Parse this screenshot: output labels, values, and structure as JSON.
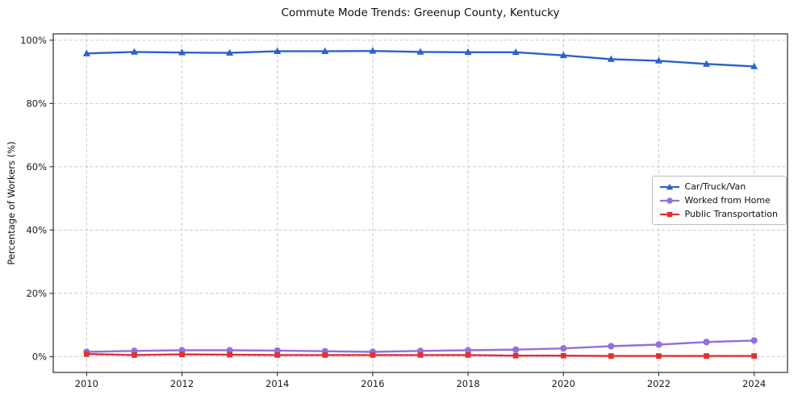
{
  "chart_data": {
    "type": "line",
    "title": "Commute Mode Trends: Greenup County, Kentucky",
    "xlabel": "",
    "ylabel": "Percentage of Workers (%)",
    "x": [
      2010,
      2011,
      2012,
      2013,
      2014,
      2015,
      2016,
      2017,
      2018,
      2019,
      2020,
      2021,
      2022,
      2023,
      2024
    ],
    "series": [
      {
        "name": "Car/Truck/Van",
        "color": "#2b62c9",
        "marker": "triangle",
        "values": [
          95.8,
          96.3,
          96.1,
          96.0,
          96.5,
          96.5,
          96.6,
          96.3,
          96.2,
          96.2,
          95.2,
          94.0,
          93.5,
          92.5,
          91.7
        ]
      },
      {
        "name": "Worked from Home",
        "color": "#9370db",
        "marker": "circle",
        "values": [
          1.5,
          1.8,
          2.0,
          2.0,
          1.9,
          1.7,
          1.5,
          1.8,
          2.0,
          2.2,
          2.6,
          3.3,
          3.8,
          4.6,
          5.1
        ]
      },
      {
        "name": "Public Transportation",
        "color": "#dd3333",
        "marker": "square",
        "values": [
          0.8,
          0.5,
          0.7,
          0.6,
          0.5,
          0.5,
          0.5,
          0.5,
          0.5,
          0.3,
          0.3,
          0.2,
          0.2,
          0.2,
          0.2
        ]
      }
    ],
    "xlim": [
      2009.3,
      2024.7
    ],
    "ylim": [
      -5,
      102
    ],
    "xticks": [
      2010,
      2012,
      2014,
      2016,
      2018,
      2020,
      2022,
      2024
    ],
    "xtick_labels": [
      "2010",
      "2012",
      "2014",
      "2016",
      "2018",
      "2020",
      "2022",
      "2024"
    ],
    "yticks": [
      0,
      20,
      40,
      60,
      80,
      100
    ],
    "ytick_labels": [
      "0%",
      "20%",
      "40%",
      "60%",
      "80%",
      "100%"
    ],
    "grid": true,
    "legend_position": "center right"
  }
}
